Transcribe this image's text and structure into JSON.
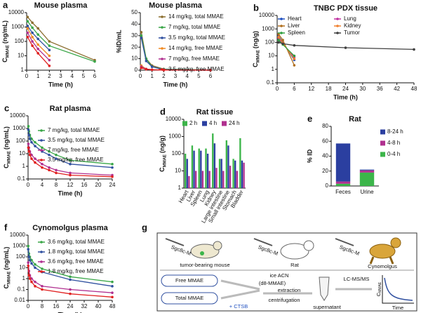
{
  "chart_data": [
    {
      "panel": "a",
      "type": "line",
      "title": "Mouse plasma",
      "ylabel": {
        "main": "C",
        "sub": "MMAE",
        "unit": "(ng/mL)"
      },
      "xlabel": "Time (h)",
      "x": [
        0.083,
        0.5,
        1,
        2,
        6
      ],
      "xlim": [
        0,
        6
      ],
      "xticks": [
        0,
        1,
        2,
        3,
        4,
        5,
        6
      ],
      "ylim": [
        1,
        10000
      ],
      "yticks": [
        1,
        10,
        100,
        1000,
        10000
      ],
      "log_y": true,
      "legend": false,
      "series": [
        {
          "color": "#8b6d2e",
          "values": [
            5000,
            2000,
            800,
            100,
            5
          ]
        },
        {
          "color": "#3aa648",
          "values": [
            2500,
            900,
            300,
            50,
            4
          ]
        },
        {
          "color": "#3050a0",
          "values": [
            1200,
            400,
            150,
            25,
            null
          ]
        },
        {
          "color": "#f08a24",
          "values": [
            800,
            200,
            60,
            10,
            null
          ]
        },
        {
          "color": "#b03090",
          "values": [
            400,
            100,
            30,
            5,
            null
          ]
        },
        {
          "color": "#e02020",
          "values": [
            200,
            50,
            15,
            2,
            null
          ]
        }
      ]
    },
    {
      "panel": "",
      "type": "line",
      "title": "Mouse plasma",
      "ylabel": "%ID/mL",
      "xlabel": "Time (h)",
      "x": [
        0.083,
        0.5,
        1,
        2,
        6
      ],
      "xlim": [
        0,
        6
      ],
      "xticks": [
        0,
        1,
        2,
        3,
        4,
        5,
        6
      ],
      "ylim": [
        0,
        50
      ],
      "yticks": [
        0,
        10,
        20,
        30,
        40,
        50
      ],
      "log_y": false,
      "legend": true,
      "series": [
        {
          "name": "14 mg/kg, total MMAE",
          "color": "#8b6d2e",
          "values": [
            33,
            10,
            4,
            1,
            0.2
          ]
        },
        {
          "name": "7 mg/kg, total MMAE",
          "color": "#3aa648",
          "values": [
            30,
            10,
            3,
            0.8,
            0.2
          ]
        },
        {
          "name": "3.5 mg/kg, total MMAE",
          "color": "#3050a0",
          "values": [
            28,
            8,
            3,
            0.5,
            0.1
          ]
        },
        {
          "name": "14 mg/kg, free MMAE",
          "color": "#f08a24",
          "values": [
            4,
            1,
            0.5,
            0.1,
            0
          ]
        },
        {
          "name": "7 mg/kg, free MMAE",
          "color": "#b03090",
          "values": [
            3,
            1,
            0.4,
            0.1,
            0
          ]
        },
        {
          "name": "3.5 mg/kg, free MMAE",
          "color": "#e02020",
          "values": [
            2,
            0.8,
            0.3,
            0.1,
            0
          ]
        }
      ]
    },
    {
      "panel": "b",
      "type": "line",
      "title": "TNBC PDX tissue",
      "ylabel": {
        "main": "C",
        "sub": "MMAE",
        "unit": "(ng/g)"
      },
      "xlabel": "Time (h)",
      "x": [
        0.5,
        2,
        6,
        24,
        48
      ],
      "xlim": [
        0,
        48
      ],
      "xticks": [
        0,
        6,
        12,
        18,
        24,
        30,
        36,
        42,
        48
      ],
      "ylim": [
        0.1,
        10000
      ],
      "yticks": [
        0.1,
        1,
        10,
        100,
        1000,
        10000
      ],
      "log_y": true,
      "legend": true,
      "series": [
        {
          "name": "Heart",
          "color": "#2050c0",
          "values": [
            300,
            100,
            5,
            null,
            null
          ]
        },
        {
          "name": "Lung",
          "color": "#c030a0",
          "values": [
            200,
            80,
            8,
            null,
            null
          ]
        },
        {
          "name": "Liver",
          "color": "#b07020",
          "values": [
            400,
            150,
            2,
            null,
            null
          ]
        },
        {
          "name": "Kidney",
          "color": "#f08030",
          "values": [
            250,
            90,
            6,
            null,
            null
          ]
        },
        {
          "name": "Spleen",
          "color": "#30a040",
          "values": [
            150,
            70,
            10,
            null,
            null
          ]
        },
        {
          "name": "Tumor",
          "color": "#404040",
          "values": [
            100,
            80,
            60,
            40,
            30
          ]
        }
      ]
    },
    {
      "panel": "c",
      "type": "line",
      "title": "Rat plasma",
      "ylabel": {
        "main": "C",
        "sub": "MMAE",
        "unit": "(ng/mL)"
      },
      "xlabel": "Time (h)",
      "x": [
        0.083,
        0.25,
        0.5,
        1,
        2,
        4,
        6,
        8,
        12,
        24
      ],
      "xlim": [
        0,
        24
      ],
      "xticks": [
        0,
        4,
        8,
        12,
        16,
        20,
        24
      ],
      "ylim": [
        0.1,
        10000
      ],
      "yticks": [
        0.1,
        1,
        10,
        100,
        1000,
        10000
      ],
      "log_y": true,
      "legend": true,
      "series": [
        {
          "name": "7 mg/kg, total MMAE",
          "color": "#3aa648",
          "values": [
            1500,
            600,
            300,
            150,
            80,
            30,
            15,
            8,
            3,
            1.5
          ]
        },
        {
          "name": "3.5 mg/kg, total MMAE",
          "color": "#3050a0",
          "values": [
            800,
            300,
            150,
            80,
            40,
            15,
            8,
            4,
            1.5,
            0.8
          ]
        },
        {
          "name": "7 mg/kg, free MMAE",
          "color": "#b03090",
          "values": [
            60,
            30,
            15,
            8,
            4,
            1.5,
            0.8,
            0.5,
            0.3,
            0.2
          ]
        },
        {
          "name": "3.5 mg/kg, free MMAE",
          "color": "#e02020",
          "values": [
            30,
            15,
            8,
            4,
            2,
            0.8,
            0.5,
            0.3,
            0.2,
            0.15
          ]
        }
      ]
    },
    {
      "panel": "d",
      "type": "bar",
      "title": "Rat tissue",
      "ylabel": {
        "main": "C",
        "sub": "MMAE",
        "unit": "(ng/g)"
      },
      "categories": [
        "Heart",
        "Liver",
        "Spleen",
        "Lung",
        "Kidney",
        "Large intestine",
        "Small intestine",
        "Stomach",
        "Bladder"
      ],
      "ylim": [
        1,
        10000
      ],
      "yticks": [
        1,
        10,
        100,
        1000,
        10000
      ],
      "log_y": true,
      "legend": true,
      "series": [
        {
          "name": "2 h",
          "color": "#3cb54a",
          "values": [
            100,
            300,
            200,
            200,
            1500,
            50,
            600,
            50,
            800
          ]
        },
        {
          "name": "4 h",
          "color": "#2b3fa0",
          "values": [
            50,
            150,
            150,
            100,
            400,
            50,
            300,
            40,
            40
          ]
        },
        {
          "name": "24 h",
          "color": "#b0308f",
          "values": [
            5,
            10,
            10,
            10,
            15,
            10,
            20,
            10,
            30
          ]
        }
      ]
    },
    {
      "panel": "e",
      "type": "stacked_bar",
      "title": "Rat",
      "ylabel": "% ID",
      "categories": [
        "Feces",
        "Urine"
      ],
      "ylim": [
        0,
        80
      ],
      "yticks": [
        0,
        20,
        40,
        60,
        80
      ],
      "log_y": false,
      "legend": true,
      "series": [
        {
          "name": "0-4 h",
          "color": "#3cb54a",
          "values": [
            3,
            18
          ]
        },
        {
          "name": "4-8 h",
          "color": "#b0308f",
          "values": [
            3,
            3
          ]
        },
        {
          "name": "8-24 h",
          "color": "#2b3fa0",
          "values": [
            51,
            1
          ]
        }
      ]
    },
    {
      "panel": "f",
      "type": "line",
      "title": "Cynomolgus plasma",
      "ylabel": {
        "main": "C",
        "sub": "MMAE",
        "unit": "(ng/mL)"
      },
      "xlabel": "Time (h)",
      "x": [
        0.083,
        0.5,
        1,
        2,
        4,
        8,
        24,
        48
      ],
      "xlim": [
        0,
        48
      ],
      "xticks": [
        0,
        8,
        16,
        24,
        32,
        40,
        48
      ],
      "ylim": [
        0.01,
        10000
      ],
      "yticks": [
        0.01,
        0.1,
        1,
        10,
        100,
        1000,
        10000
      ],
      "log_y": true,
      "legend": true,
      "series": [
        {
          "name": "3.6 mg/kg, total MMAE",
          "color": "#3aa648",
          "values": [
            1000,
            200,
            100,
            50,
            20,
            8,
            1.5,
            0.5
          ]
        },
        {
          "name": "1.8 mg/kg, total MMAE",
          "color": "#3050a0",
          "values": [
            500,
            100,
            50,
            25,
            10,
            4,
            0.8,
            0.2
          ]
        },
        {
          "name": "3.6 mg/kg, free MMAE",
          "color": "#b03090",
          "values": [
            30,
            5,
            2,
            1,
            0.5,
            0.2,
            0.1,
            0.05
          ]
        },
        {
          "name": "1.8 mg/kg, free MMAE",
          "color": "#e02020",
          "values": [
            15,
            2,
            1,
            0.5,
            0.2,
            0.1,
            0.04,
            0.02
          ]
        }
      ]
    }
  ],
  "diagram": {
    "panel": "g",
    "animals": [
      {
        "probe": "Sgc8c-M",
        "label": "tumor-bearing mouse"
      },
      {
        "probe": "Sgc8c-M",
        "label": "Rat"
      },
      {
        "probe": "Sgc8c-M",
        "label": "Cynomolgus"
      }
    ],
    "samples": [
      "Free MMAE",
      "Total MMAE"
    ],
    "enzyme": "+ CTSB",
    "extraction": [
      "ice ACN",
      "(d8-MMAE)",
      "extraction"
    ],
    "centrifugation": "centrifugation",
    "supernatant": "supernatant",
    "analysis": "LC-MS/MS",
    "plot": {
      "ylabel_main": "C",
      "ylabel_sub": "MMAE",
      "xlabel": "Time"
    }
  }
}
